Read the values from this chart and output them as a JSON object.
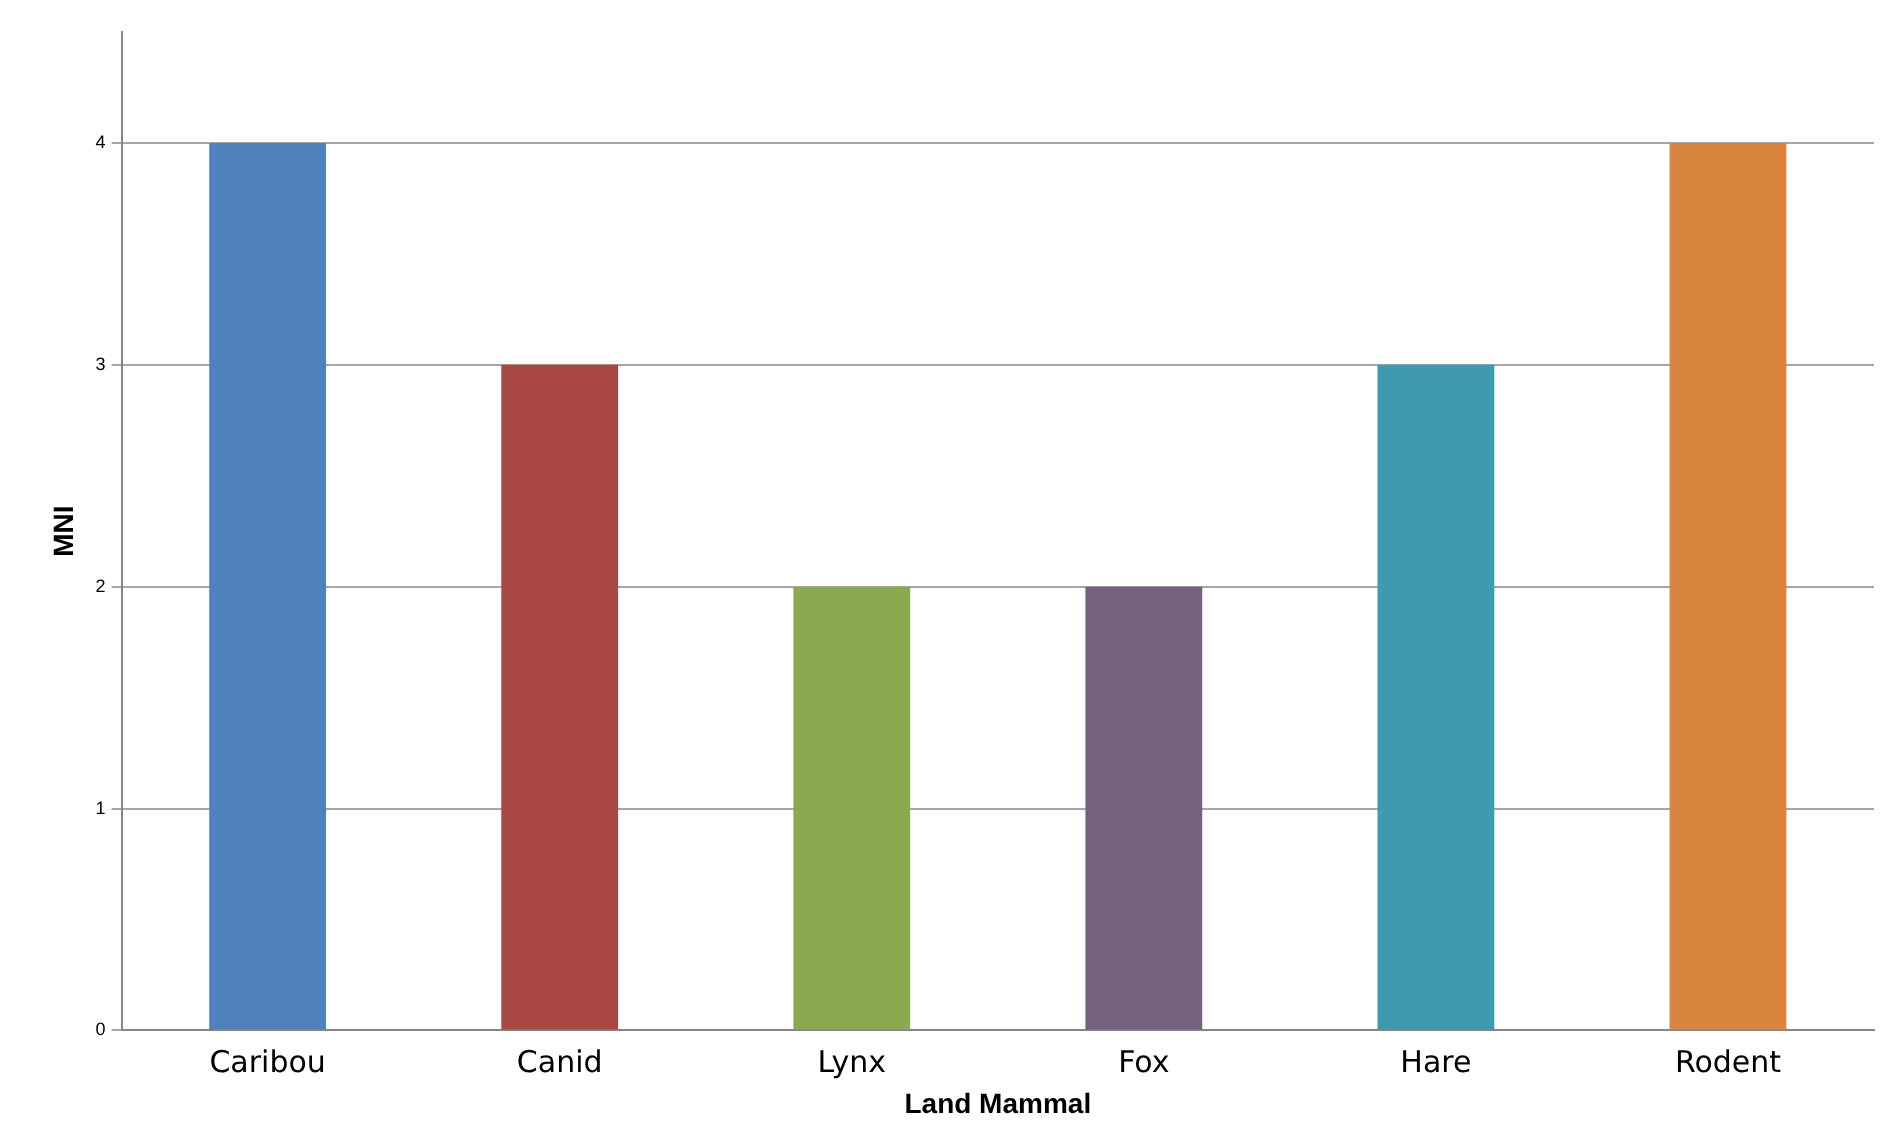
{
  "chart_data": {
    "type": "bar",
    "xlabel": "Land Mammal",
    "ylabel": "MNI",
    "categories": [
      "Caribou",
      "Canid",
      "Lynx",
      "Fox",
      "Hare",
      "Rodent"
    ],
    "values": [
      4,
      3,
      2,
      2,
      3,
      4
    ],
    "colors": [
      "#4f81bd",
      "#a94745",
      "#8aaa50",
      "#76607e",
      "#3f9aaf",
      "#d98540"
    ],
    "ylim": [
      0,
      4.5
    ],
    "yticks": [
      0,
      1,
      2,
      3,
      4
    ],
    "grid": "y",
    "legend": false
  }
}
